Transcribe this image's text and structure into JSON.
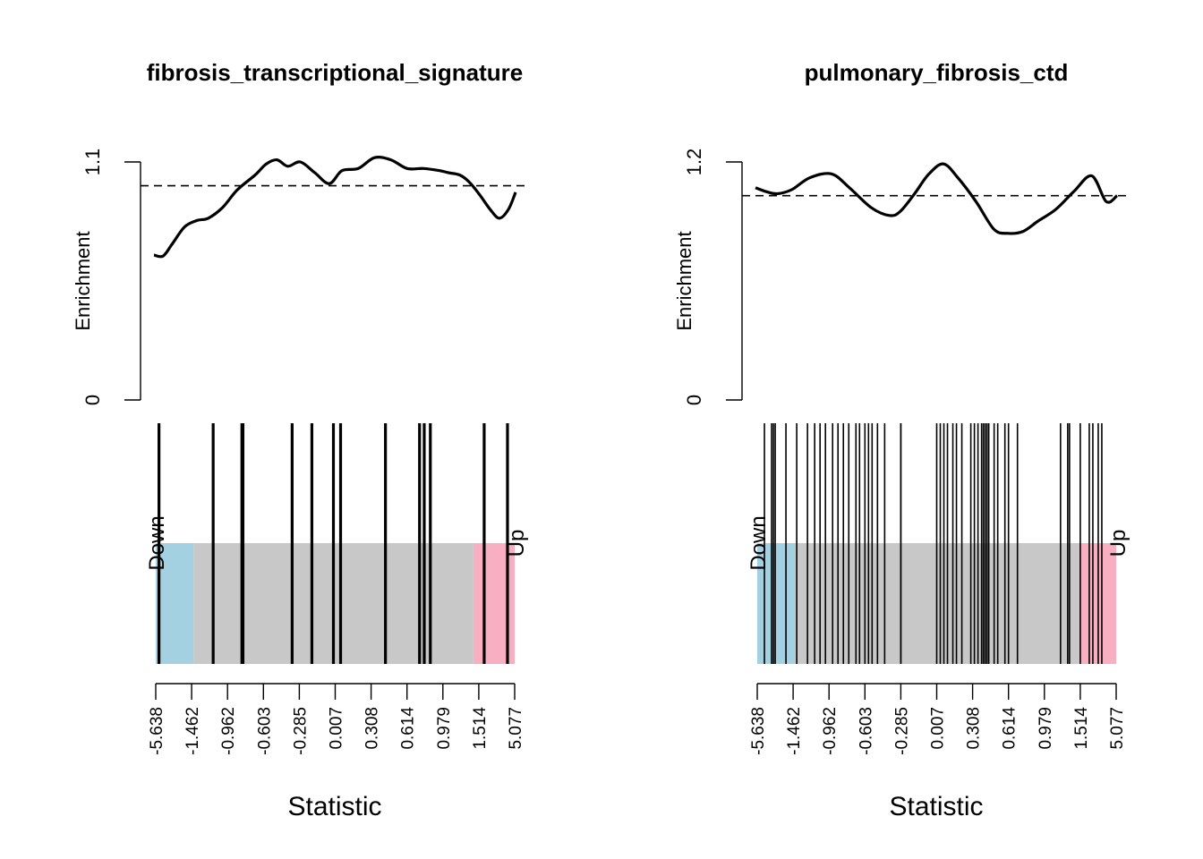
{
  "colors": {
    "down_band": "#A4D1E2",
    "middle_band": "#C8C8C8",
    "up_band": "#F8AFC2",
    "line": "#000000"
  },
  "labels": {
    "ylabel": "Enrichment",
    "xlabel": "Statistic",
    "down": "Down",
    "up": "Up"
  },
  "chart_data": [
    {
      "type": "barcodeplot",
      "title": "fibrosis_transcriptional_signature",
      "ylim": [
        0,
        1.1
      ],
      "yticks": [
        "0",
        "1.1"
      ],
      "xlabel": "Statistic",
      "ylabel": "Enrichment",
      "x_tick_labels": [
        "-5.638",
        "-1.462",
        "-0.962",
        "-0.603",
        "-0.285",
        "0.007",
        "0.308",
        "0.614",
        "0.979",
        "1.514",
        "5.077"
      ],
      "expected_enrichment": 0.99,
      "enrichment_curve": {
        "rank_fraction": [
          0.0,
          0.025,
          0.05,
          0.085,
          0.12,
          0.15,
          0.19,
          0.23,
          0.28,
          0.31,
          0.34,
          0.37,
          0.405,
          0.445,
          0.485,
          0.52,
          0.565,
          0.61,
          0.655,
          0.7,
          0.745,
          0.79,
          0.815,
          0.845,
          0.87,
          0.9,
          0.93,
          0.955,
          0.98,
          1.0
        ],
        "enrichment": [
          0.67,
          0.665,
          0.72,
          0.8,
          0.83,
          0.84,
          0.89,
          0.97,
          1.04,
          1.09,
          1.11,
          1.08,
          1.1,
          1.05,
          1.0,
          1.06,
          1.07,
          1.12,
          1.11,
          1.07,
          1.07,
          1.06,
          1.05,
          1.04,
          1.01,
          0.95,
          0.88,
          0.84,
          0.88,
          0.96
        ]
      },
      "gene_positions": [
        0.009,
        0.16,
        0.24,
        0.243,
        0.38,
        0.435,
        0.495,
        0.515,
        0.64,
        0.735,
        0.748,
        0.765,
        0.915,
        0.98
      ],
      "band_fractions": {
        "down_end": 0.105,
        "up_start": 0.885
      }
    },
    {
      "type": "barcodeplot",
      "title": "pulmonary_fibrosis_ctd",
      "ylim": [
        0,
        1.2
      ],
      "yticks": [
        "0",
        "1.2"
      ],
      "xlabel": "Statistic",
      "ylabel": "Enrichment",
      "x_tick_labels": [
        "-5.638",
        "-1.462",
        "-0.962",
        "-0.603",
        "-0.285",
        "0.007",
        "0.308",
        "0.614",
        "0.979",
        "1.514",
        "5.077"
      ],
      "expected_enrichment": 1.03,
      "enrichment_curve": {
        "rank_fraction": [
          0.0,
          0.03,
          0.06,
          0.1,
          0.15,
          0.21,
          0.26,
          0.32,
          0.37,
          0.4,
          0.44,
          0.48,
          0.52,
          0.56,
          0.61,
          0.66,
          0.7,
          0.74,
          0.78,
          0.83,
          0.88,
          0.93,
          0.97,
          1.0
        ],
        "enrichment": [
          1.07,
          1.05,
          1.04,
          1.06,
          1.12,
          1.14,
          1.07,
          0.97,
          0.93,
          0.95,
          1.04,
          1.14,
          1.19,
          1.12,
          1.0,
          0.86,
          0.84,
          0.85,
          0.9,
          0.96,
          1.05,
          1.13,
          1.0,
          1.03
        ]
      },
      "gene_positions": [
        0.02,
        0.04,
        0.045,
        0.05,
        0.08,
        0.11,
        0.14,
        0.16,
        0.175,
        0.19,
        0.21,
        0.225,
        0.24,
        0.255,
        0.275,
        0.285,
        0.3,
        0.31,
        0.32,
        0.335,
        0.355,
        0.4,
        0.4,
        0.5,
        0.51,
        0.52,
        0.53,
        0.545,
        0.555,
        0.57,
        0.595,
        0.605,
        0.615,
        0.625,
        0.63,
        0.635,
        0.64,
        0.645,
        0.66,
        0.67,
        0.69,
        0.7,
        0.725,
        0.845,
        0.865,
        0.87,
        0.9,
        0.925,
        0.935,
        0.95,
        0.96
      ],
      "band_fractions": {
        "down_end": 0.105,
        "up_start": 0.895
      }
    }
  ]
}
